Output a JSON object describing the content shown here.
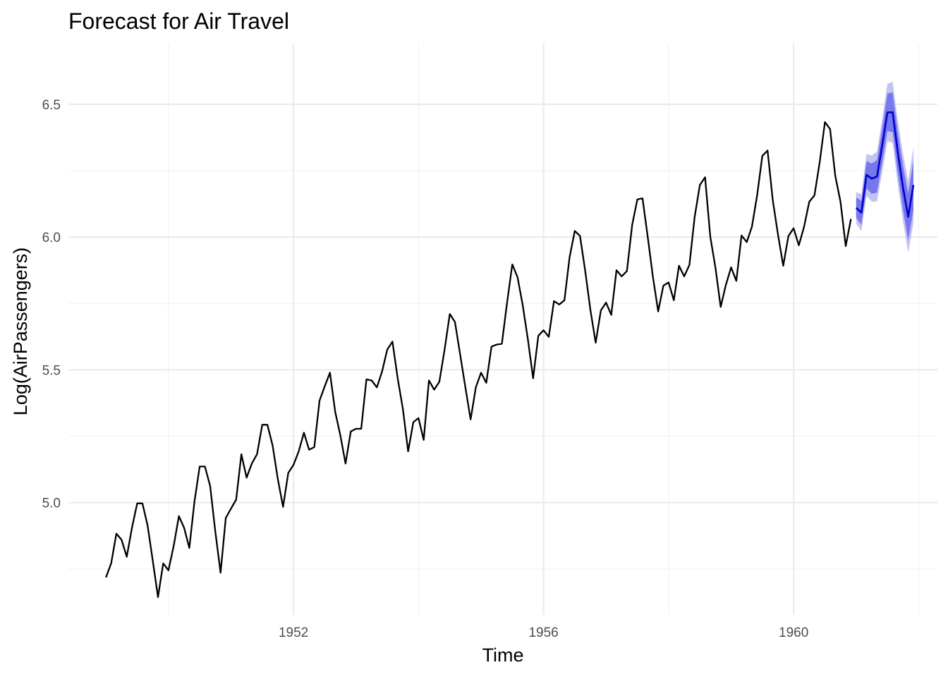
{
  "chart_data": {
    "type": "line",
    "title": "Forecast for Air Travel",
    "xlabel": "Time",
    "ylabel": "Log(AirPassengers)",
    "xlim": [
      1948.4,
      1962.3
    ],
    "ylim": [
      4.5768,
      6.7281
    ],
    "x_ticks": [
      1952,
      1956,
      1960
    ],
    "x_tick_labels": [
      "1952",
      "1956",
      "1960"
    ],
    "y_ticks": [
      5.0,
      5.5,
      6.0,
      6.5
    ],
    "y_tick_labels": [
      "5.0",
      "5.5",
      "6.0",
      "6.5"
    ],
    "grid": true,
    "legend": "none",
    "colors": {
      "observed": "#000000",
      "forecast": "#0000cc",
      "band80": "#7777ee",
      "band95": "#c4c4f3"
    },
    "observed": {
      "start": 1949.0,
      "frequency": 12,
      "values": [
        4.718,
        4.771,
        4.883,
        4.86,
        4.796,
        4.905,
        4.997,
        4.997,
        4.913,
        4.779,
        4.644,
        4.771,
        4.745,
        4.836,
        4.949,
        4.905,
        4.829,
        5.004,
        5.136,
        5.136,
        5.063,
        4.89,
        4.736,
        4.942,
        4.977,
        5.011,
        5.182,
        5.094,
        5.147,
        5.182,
        5.293,
        5.293,
        5.215,
        5.088,
        4.984,
        5.112,
        5.142,
        5.193,
        5.263,
        5.199,
        5.209,
        5.384,
        5.438,
        5.489,
        5.342,
        5.252,
        5.147,
        5.268,
        5.278,
        5.278,
        5.464,
        5.46,
        5.434,
        5.493,
        5.576,
        5.606,
        5.468,
        5.352,
        5.193,
        5.303,
        5.318,
        5.236,
        5.46,
        5.425,
        5.455,
        5.576,
        5.71,
        5.68,
        5.557,
        5.434,
        5.313,
        5.434,
        5.489,
        5.451,
        5.587,
        5.595,
        5.598,
        5.753,
        5.897,
        5.849,
        5.743,
        5.613,
        5.468,
        5.628,
        5.649,
        5.624,
        5.759,
        5.746,
        5.762,
        5.924,
        6.023,
        6.004,
        5.872,
        5.724,
        5.602,
        5.724,
        5.753,
        5.707,
        5.875,
        5.852,
        5.872,
        6.045,
        6.142,
        6.146,
        6.001,
        5.849,
        5.72,
        5.817,
        5.829,
        5.762,
        5.892,
        5.852,
        5.895,
        6.075,
        6.196,
        6.225,
        6.001,
        5.883,
        5.737,
        5.82,
        5.886,
        5.835,
        6.006,
        5.981,
        6.04,
        6.157,
        6.306,
        6.326,
        6.138,
        6.009,
        5.892,
        6.004,
        6.033,
        5.969,
        6.038,
        6.133,
        6.157,
        6.282,
        6.433,
        6.407,
        6.23,
        6.133,
        5.966,
        6.068
      ]
    },
    "forecast": {
      "start": 1961.0,
      "frequency": 12,
      "mean": [
        6.11,
        6.092,
        6.234,
        6.22,
        6.228,
        6.345,
        6.469,
        6.47,
        6.318,
        6.185,
        6.076,
        6.196
      ],
      "lo80": [
        6.072,
        6.046,
        6.183,
        6.163,
        6.167,
        6.279,
        6.399,
        6.395,
        6.239,
        6.102,
        5.987,
        6.102
      ],
      "hi80": [
        6.149,
        6.137,
        6.286,
        6.277,
        6.29,
        6.411,
        6.54,
        6.545,
        6.397,
        6.268,
        6.165,
        6.29
      ],
      "lo95": [
        6.052,
        6.022,
        6.156,
        6.133,
        6.134,
        6.244,
        6.361,
        6.355,
        6.197,
        6.058,
        5.94,
        6.053
      ],
      "hi95": [
        6.17,
        6.161,
        6.313,
        6.307,
        6.322,
        6.446,
        6.577,
        6.585,
        6.439,
        6.312,
        6.212,
        6.34
      ]
    }
  }
}
